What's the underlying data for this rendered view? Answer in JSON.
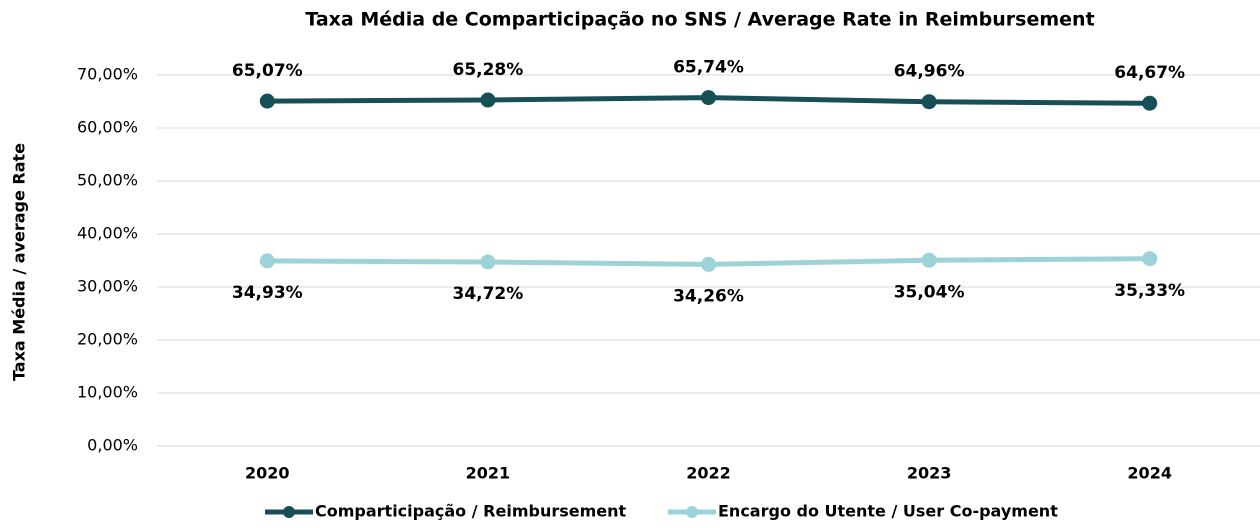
{
  "chart_data": {
    "type": "line",
    "title": "Taxa Média de Comparticipação no SNS  / Average Rate in Reimbursement",
    "y_label": "Taxa Média / average Rate",
    "categories": [
      "2020",
      "2021",
      "2022",
      "2023",
      "2024"
    ],
    "series": [
      {
        "name": "Comparticipação / Reimbursement",
        "color": "#174f57",
        "values": [
          65.07,
          65.28,
          65.74,
          64.96,
          64.67
        ],
        "value_labels": [
          "65,07%",
          "65,28%",
          "65,74%",
          "64,96%",
          "64,67%"
        ]
      },
      {
        "name": "Encargo do Utente / User Co-payment",
        "color": "#9dd2d8",
        "values": [
          34.93,
          34.72,
          34.26,
          35.04,
          35.33
        ],
        "value_labels": [
          "34,93%",
          "34,72%",
          "34,26%",
          "35,04%",
          "35,33%"
        ]
      }
    ],
    "ylim": [
      0,
      70
    ],
    "yticks": [
      {
        "value": 0,
        "label": "0,00%"
      },
      {
        "value": 10,
        "label": "10,00%"
      },
      {
        "value": 20,
        "label": "20,00%"
      },
      {
        "value": 30,
        "label": "30,00%"
      },
      {
        "value": 40,
        "label": "40,00%"
      },
      {
        "value": 50,
        "label": "50,00%"
      },
      {
        "value": 60,
        "label": "60,00%"
      },
      {
        "value": 70,
        "label": "70,00%"
      }
    ],
    "grid": true,
    "legend": "bottom"
  }
}
